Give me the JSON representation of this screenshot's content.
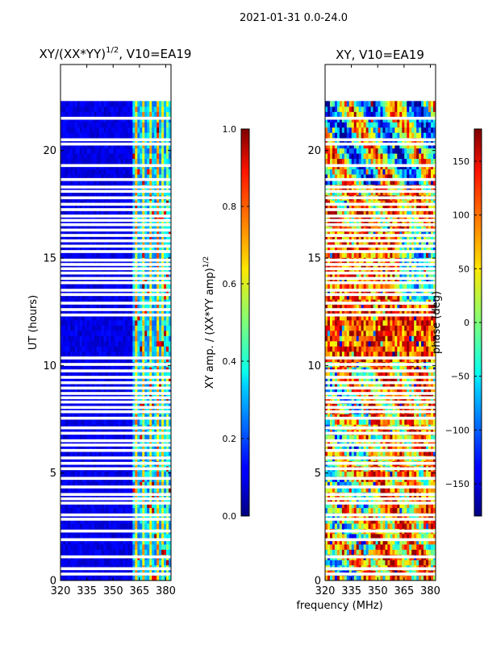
{
  "figure_title": "2021-01-31 0.0-24.0",
  "chart_data": [
    {
      "type": "heatmap",
      "title_main": "XY/(XX*YY)",
      "title_sup": "1/2",
      "title_tail": ", V10=EA19",
      "xlabel": "frequency (MHz)",
      "ylabel": "UT (hours)",
      "xlim": [
        320,
        383
      ],
      "ylim": [
        0,
        24
      ],
      "x_ticks": [
        320,
        335,
        350,
        365,
        380
      ],
      "x_tick_labels": [
        "320",
        "335",
        "350",
        "365",
        "380"
      ],
      "y_ticks": [
        0,
        5,
        10,
        15,
        20
      ],
      "y_tick_labels": [
        "0",
        "5",
        "10",
        "15",
        "20"
      ],
      "data_ut_range": [
        0,
        22.3
      ],
      "colorbar": {
        "label": "XY amp. / (XX*YY amp)",
        "label_sup": "1/2",
        "range": [
          0.0,
          1.0
        ],
        "ticks": [
          0.0,
          0.2,
          0.4,
          0.6,
          0.8,
          1.0
        ],
        "tick_labels": [
          "0.0",
          "0.2",
          "0.4",
          "0.6",
          "0.8",
          "1.0"
        ],
        "colormap": "jet"
      }
    },
    {
      "type": "heatmap",
      "title": "XY, V10=EA19",
      "xlim": [
        320,
        383
      ],
      "ylim": [
        0,
        24
      ],
      "x_ticks": [
        320,
        335,
        350,
        365,
        380
      ],
      "x_tick_labels": [
        "320",
        "335",
        "350",
        "365",
        "380"
      ],
      "y_ticks": [
        0,
        5,
        10,
        15,
        20
      ],
      "y_tick_labels": [
        "0",
        "5",
        "10",
        "15",
        "20"
      ],
      "data_ut_range": [
        0,
        22.3
      ],
      "colorbar": {
        "label": "phase (deg)",
        "range": [
          -180,
          180
        ],
        "ticks": [
          -150,
          -100,
          -50,
          0,
          50,
          100,
          150
        ],
        "tick_labels": [
          "−150",
          "−100",
          "−50",
          "0",
          "50",
          "100",
          "150"
        ],
        "colormap": "jet"
      }
    }
  ],
  "flagged_ut_hours": [
    0.3,
    0.55,
    1.1,
    1.9,
    2.3,
    2.85,
    3.05,
    3.6,
    3.8,
    4.0,
    4.35,
    4.75,
    5.2,
    5.45,
    5.7,
    6.05,
    6.3,
    6.5,
    6.85,
    7.1,
    7.55,
    7.85,
    8.05,
    8.3,
    8.5,
    8.7,
    8.95,
    9.2,
    9.45,
    9.75,
    10.05,
    10.35,
    12.35,
    12.6,
    12.9,
    13.3,
    13.5,
    13.85,
    14.05,
    14.3,
    14.5,
    14.7,
    14.9,
    15.3,
    15.55,
    15.8,
    16.05,
    16.3,
    16.55,
    16.75,
    16.95,
    17.25,
    17.5,
    17.8,
    18.1,
    18.3,
    18.65,
    19.3,
    20.3,
    20.5,
    21.5
  ]
}
